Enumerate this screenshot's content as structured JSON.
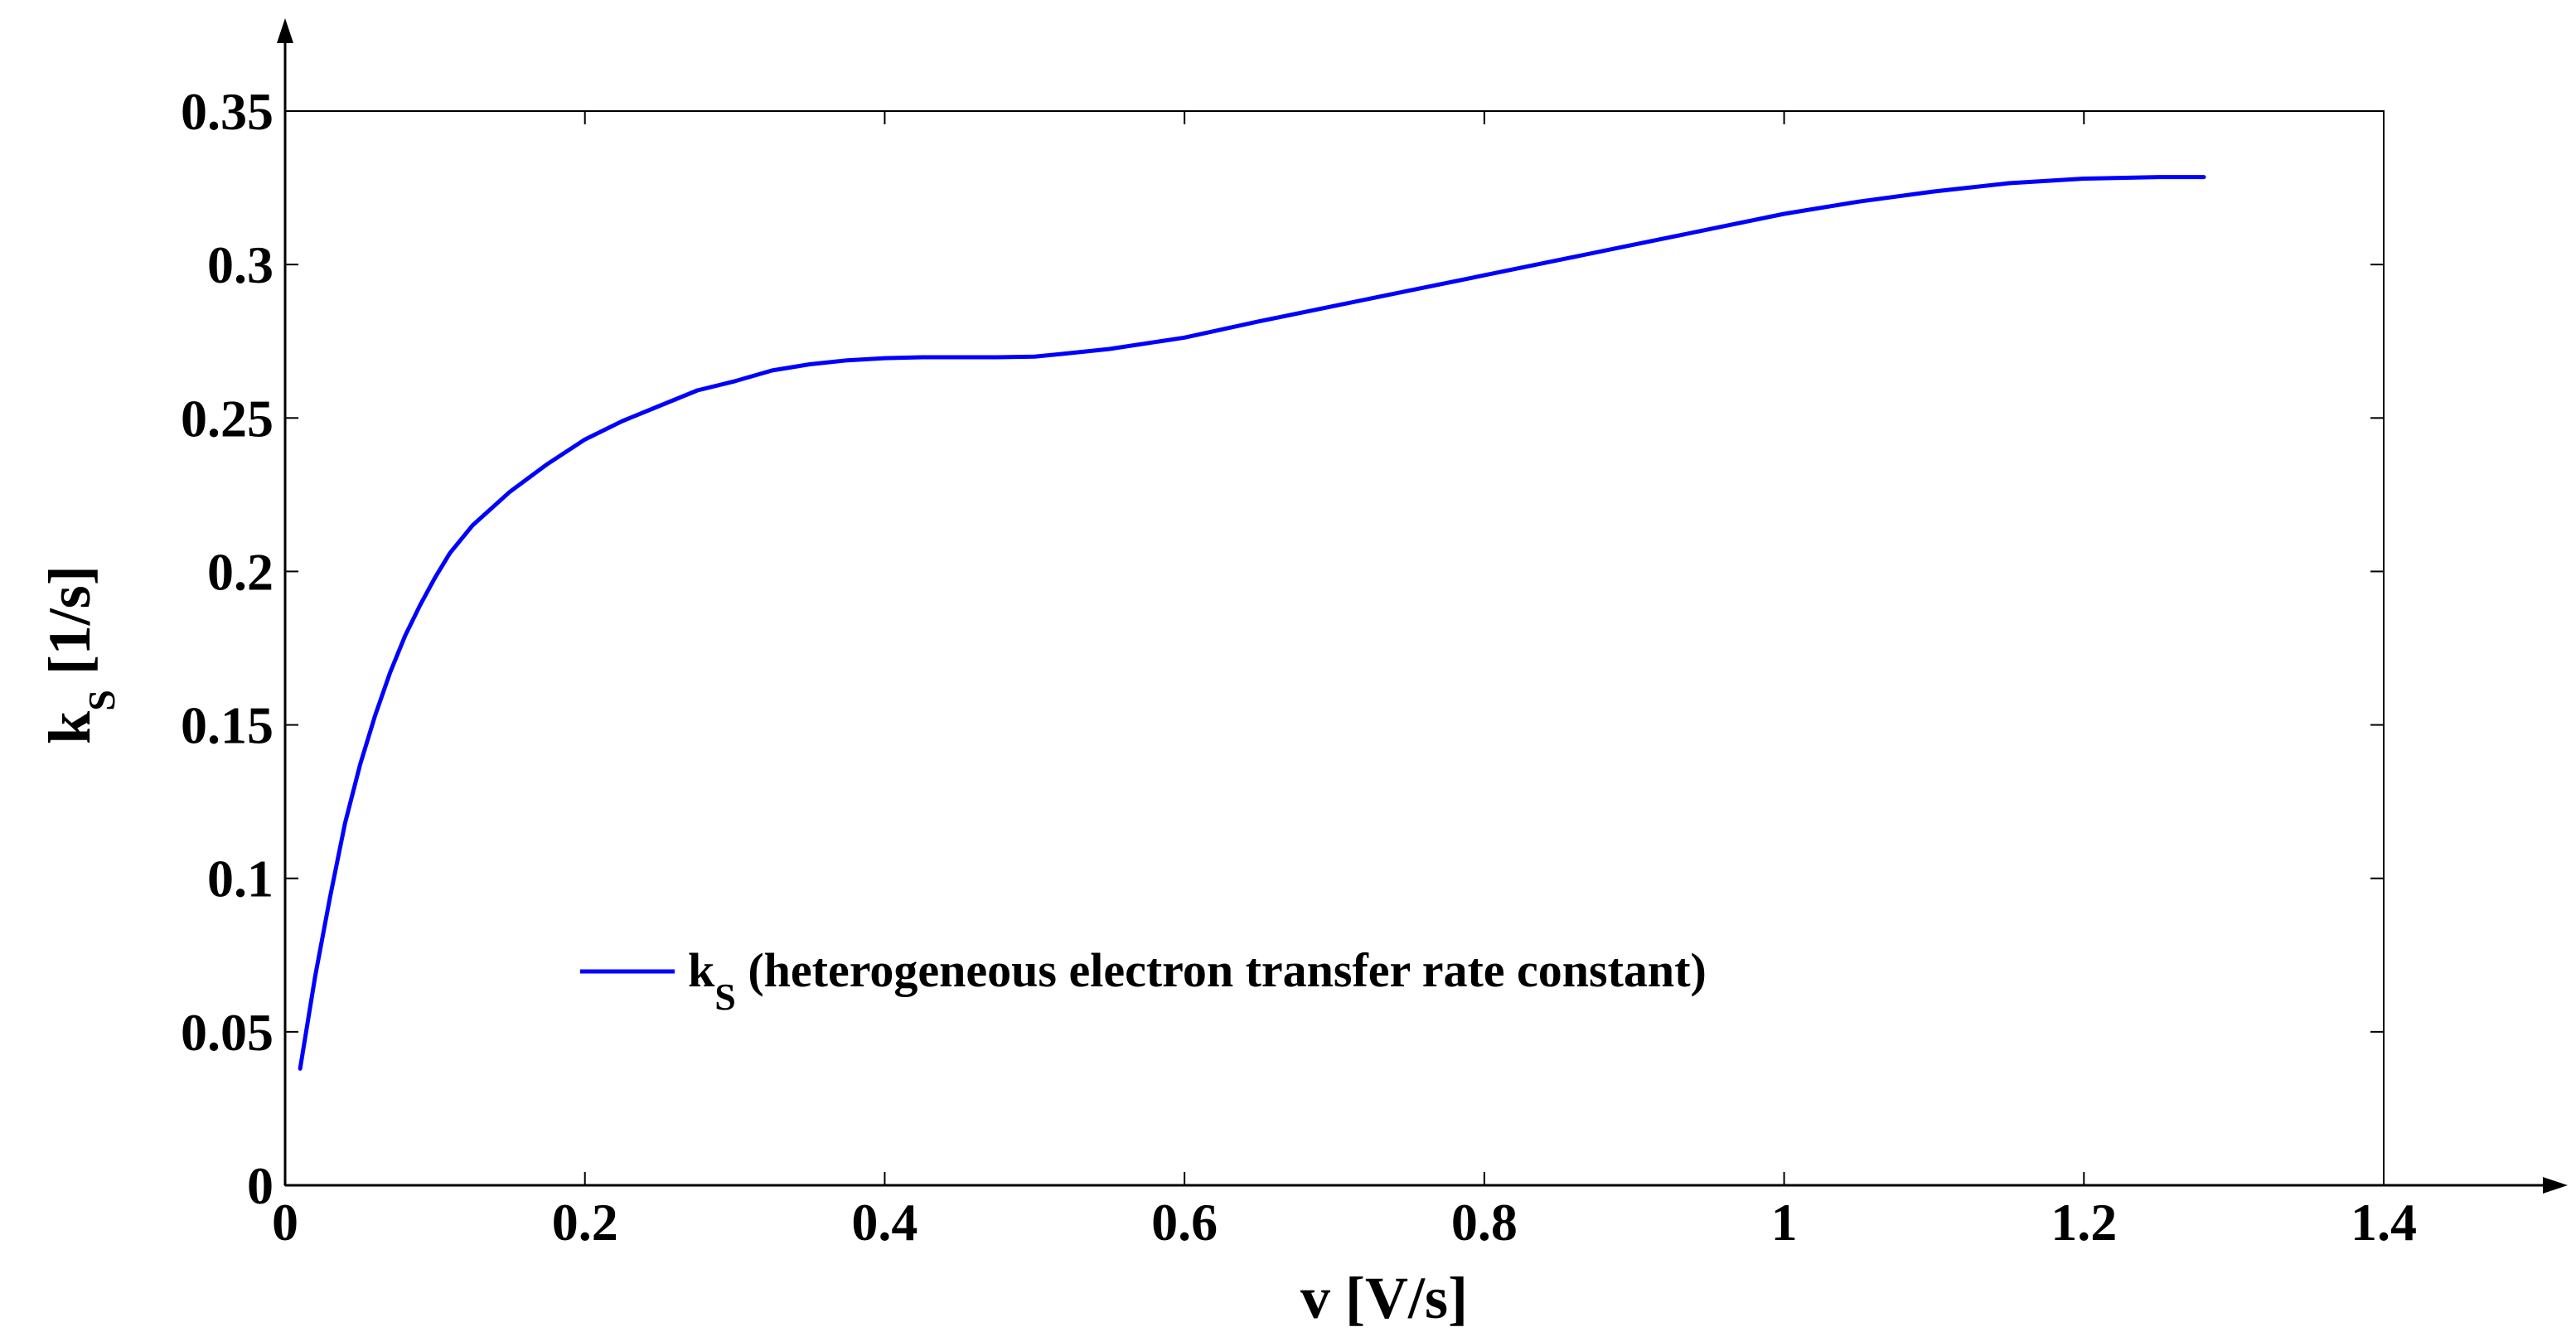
{
  "chart_data": {
    "type": "line",
    "title": "",
    "xlabel": "v [V/s]",
    "ylabel_main": "k",
    "ylabel_sub": "S",
    "ylabel_unit": " [1/s]",
    "xlim": [
      0,
      1.4
    ],
    "ylim": [
      0,
      0.35
    ],
    "xticks": [
      0,
      0.2,
      0.4,
      0.6,
      0.8,
      1,
      1.2,
      1.4
    ],
    "xtick_labels": [
      "0",
      "0.2",
      "0.4",
      "0.6",
      "0.8",
      "1",
      "1.2",
      "1.4"
    ],
    "yticks": [
      0,
      0.05,
      0.1,
      0.15,
      0.2,
      0.25,
      0.3,
      0.35
    ],
    "ytick_labels": [
      "0",
      "0.05",
      "0.1",
      "0.15",
      "0.2",
      "0.25",
      "0.3",
      "0.35"
    ],
    "grid": false,
    "legend_position": "center-left",
    "series": [
      {
        "name": "k_S (heterogeneous electron transfer rate constant)",
        "legend_main": "k",
        "legend_sub": "S",
        "legend_rest": " (heterogeneous electron transfer rate constant)",
        "color": "#0000ff",
        "x": [
          0.01,
          0.02,
          0.03,
          0.04,
          0.05,
          0.06,
          0.07,
          0.08,
          0.09,
          0.1,
          0.11,
          0.125,
          0.15,
          0.175,
          0.2,
          0.225,
          0.25,
          0.275,
          0.3,
          0.325,
          0.35,
          0.375,
          0.4,
          0.425,
          0.45,
          0.475,
          0.5,
          0.525,
          0.55,
          0.6,
          0.65,
          0.7,
          0.75,
          0.8,
          0.85,
          0.9,
          0.95,
          1.0,
          1.05,
          1.1,
          1.15,
          1.2,
          1.25,
          1.28
        ],
        "y": [
          0.038,
          0.068,
          0.094,
          0.118,
          0.137,
          0.153,
          0.167,
          0.179,
          0.189,
          0.198,
          0.206,
          0.215,
          0.226,
          0.235,
          0.243,
          0.249,
          0.254,
          0.259,
          0.262,
          0.2655,
          0.2675,
          0.2688,
          0.2695,
          0.2698,
          0.2698,
          0.2698,
          0.27,
          0.2712,
          0.2725,
          0.2762,
          0.2815,
          0.2865,
          0.2915,
          0.2965,
          0.3015,
          0.3065,
          0.3115,
          0.3165,
          0.3205,
          0.3238,
          0.3265,
          0.328,
          0.3285,
          0.3285
        ]
      }
    ]
  }
}
